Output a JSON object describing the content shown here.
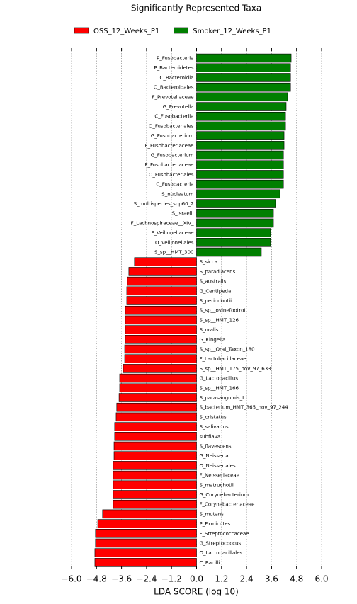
{
  "chart_data": {
    "type": "barh",
    "title": "Significantly Represented Taxa",
    "xlabel": "LDA SCORE (log 10)",
    "categories": [
      "P_Fusobacteria",
      "P_Bacteroidetes",
      "C_Bacteroidia",
      "O_Bacteroidales",
      "F_Prevotellaceae",
      "G_Prevotella",
      "C_Fusobacteriia",
      "O_Fusobacteriales",
      "G_Fusobacterium",
      "F_Fusobacteriaceae",
      "G_Fusobacterium",
      "F_Fusobacteriaceae",
      "O_Fusobacteriales",
      "C_Fusobacteria",
      "S_nucleatum",
      "S_multispecies_spp60_2",
      "S_israelii",
      "F_Lachnospiraceae__XIV_",
      "F_Veillonellaceae",
      "O_Veillonellales",
      "S_sp__HMT_300",
      "S_sicca",
      "S_paradiacens",
      "S_australis",
      "G_Centipeda",
      "S_periodontii",
      "S_sp__ovinefootrot",
      "S_sp__HMT_126",
      "S_oralis",
      "G_Kingella",
      "S_sp__Oral_Taxon_180",
      "F_Lactobacillaceae",
      "S_sp__HMT_175_nov_97_633",
      "G_Lactobacillus",
      "S_sp__HMT_166",
      "S_parasanguinis_I",
      "S_bacterium_HMT_365_nov_97_244",
      "S_cristatus",
      "S_salivarius",
      "subflava",
      "S_flavescens",
      "G_Neisseria",
      "O_Neisseriales",
      "F_Neisseriaceae",
      "S_matruchotii",
      "G_Corynebacterium",
      "F_Corynebacteriaceae",
      "S_mutans",
      "P_Firmicutes",
      "F_Streptococcaceae",
      "G_Streptococcus",
      "O_Lactobacillales",
      "C_Bacilli"
    ],
    "series": [
      {
        "name": "OSS_12_Weeks_P1",
        "color": "#ff0000",
        "values": [
          null,
          null,
          null,
          null,
          null,
          null,
          null,
          null,
          null,
          null,
          null,
          null,
          null,
          null,
          null,
          null,
          null,
          null,
          null,
          null,
          null,
          -2.98,
          -3.25,
          -3.32,
          -3.35,
          -3.35,
          -3.42,
          -3.42,
          -3.42,
          -3.42,
          -3.45,
          -3.45,
          -3.52,
          -3.69,
          -3.69,
          -3.72,
          -3.83,
          -3.86,
          -3.93,
          -3.93,
          -3.96,
          -3.96,
          -4.0,
          -4.0,
          -4.0,
          -4.0,
          -4.0,
          -4.51,
          -4.74,
          -4.85,
          -4.85,
          -4.88,
          -4.88
        ]
      },
      {
        "name": "Smoker_12_Weeks_P1",
        "color": "#007f00",
        "values": [
          4.54,
          4.51,
          4.51,
          4.51,
          4.37,
          4.3,
          4.27,
          4.27,
          4.2,
          4.2,
          4.17,
          4.17,
          4.17,
          4.17,
          4.0,
          3.79,
          3.69,
          3.69,
          3.55,
          3.55,
          3.11,
          null,
          null,
          null,
          null,
          null,
          null,
          null,
          null,
          null,
          null,
          null,
          null,
          null,
          null,
          null,
          null,
          null,
          null,
          null,
          null,
          null,
          null,
          null,
          null,
          null,
          null,
          null,
          null,
          null,
          null,
          null,
          null
        ]
      }
    ],
    "xlim": [
      -6.0,
      6.0
    ],
    "xticks": [
      {
        "value": -6.0,
        "label": "−6.0"
      },
      {
        "value": -4.8,
        "label": "−4.8"
      },
      {
        "value": -3.6,
        "label": "−3.6"
      },
      {
        "value": -2.4,
        "label": "−2.4"
      },
      {
        "value": -1.2,
        "label": "−1.2"
      },
      {
        "value": 0.0,
        "label": "0.0"
      },
      {
        "value": 1.2,
        "label": "1.2"
      },
      {
        "value": 2.4,
        "label": "2.4"
      },
      {
        "value": 3.6,
        "label": "3.6"
      },
      {
        "value": 4.8,
        "label": "4.8"
      },
      {
        "value": 6.0,
        "label": "6.0"
      }
    ],
    "grid": true
  }
}
